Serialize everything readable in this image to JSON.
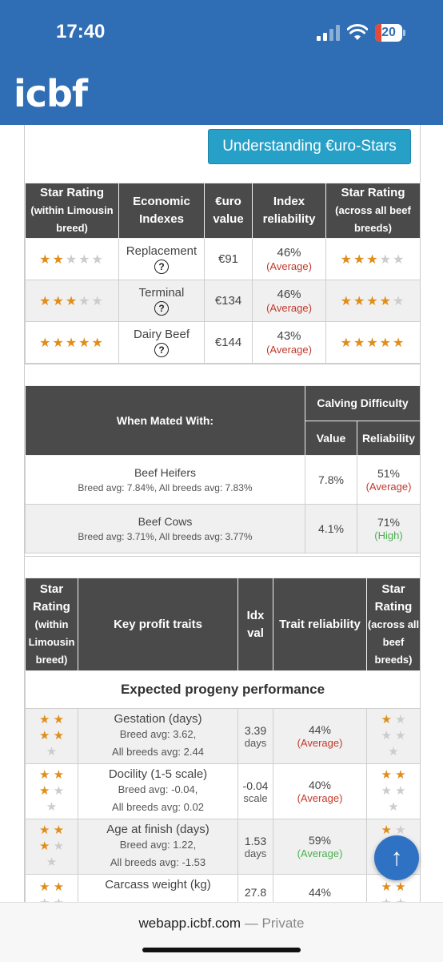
{
  "status": {
    "time": "17:40",
    "battery": "20"
  },
  "brand": {
    "logo": "icbf"
  },
  "understanding_button": "Understanding €uro-Stars",
  "index_table": {
    "headers": {
      "star_within_1": "Star Rating",
      "star_within_2": "(within Limousin breed)",
      "economic": "Economic Indexes",
      "euro_value": "€uro value",
      "reliability": "Index reliability",
      "star_across_1": "Star Rating",
      "star_across_2": "(across all beef breeds)"
    },
    "rows": [
      {
        "name": "Replacement",
        "value": "€91",
        "reliability": "46%",
        "rel_label": "(Average)",
        "stars_within": 2,
        "stars_across": 3
      },
      {
        "name": "Terminal",
        "value": "€134",
        "reliability": "46%",
        "rel_label": "(Average)",
        "stars_within": 3,
        "stars_across": 4
      },
      {
        "name": "Dairy Beef",
        "value": "€144",
        "reliability": "43%",
        "rel_label": "(Average)",
        "stars_within": 5,
        "stars_across": 5
      }
    ],
    "help_glyph": "?"
  },
  "calving_table": {
    "mated_with": "When Mated With:",
    "group": "Calving Difficulty",
    "value_header": "Value",
    "reliability_header": "Reliability",
    "rows": [
      {
        "name": "Beef Heifers",
        "sub": "Breed avg: 7.84%, All breeds avg: 7.83%",
        "value": "7.8%",
        "reliability": "51%",
        "rel_label": "(Average)"
      },
      {
        "name": "Beef Cows",
        "sub": "Breed avg: 3.71%, All breeds avg: 3.77%",
        "value": "4.1%",
        "reliability": "71%",
        "rel_label": "(High)"
      }
    ]
  },
  "traits_table": {
    "headers": {
      "star_within_1": "Star Rating",
      "star_within_2": "(within Limousin breed)",
      "key_traits": "Key profit traits",
      "idx_val": "Idx val",
      "trait_reliability": "Trait reliability",
      "star_across_1": "Star Rating",
      "star_across_2": "(across all beef breeds)"
    },
    "section": "Expected progeny performance",
    "rows": [
      {
        "name": "Gestation (days)",
        "breed_avg": "Breed avg: 3.62,",
        "all_avg": "All breeds avg: 2.44",
        "idx": "3.39",
        "unit": "days",
        "reliability": "44%",
        "rel_label": "(Average)",
        "stars_within": 4,
        "stars_across": 1
      },
      {
        "name": "Docility (1-5 scale)",
        "breed_avg": "Breed avg: -0.04,",
        "all_avg": "All breeds avg: 0.02",
        "idx": "-0.04",
        "unit": "scale",
        "reliability": "40%",
        "rel_label": "(Average)",
        "stars_within": 3,
        "stars_across": 2
      },
      {
        "name": "Age at finish (days)",
        "breed_avg": "Breed avg: 1.22,",
        "all_avg": "All breeds avg: -1.53",
        "idx": "1.53",
        "unit": "days",
        "reliability": "59%",
        "rel_label": "(Average)",
        "stars_within": 3,
        "stars_across": 1
      },
      {
        "name": "Carcass weight (kg)",
        "breed_avg": "",
        "all_avg": "",
        "idx": "27.8",
        "unit": "",
        "reliability": "44%",
        "rel_label": "",
        "stars_within": 2,
        "stars_across": 2
      }
    ]
  },
  "scroll_top_glyph": "↑",
  "browser": {
    "url": "webapp.icbf.com",
    "sep": " — ",
    "private": "Private"
  }
}
